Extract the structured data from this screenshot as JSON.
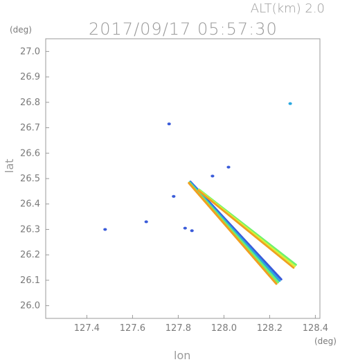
{
  "header": {
    "altitude_label": "ALT(km) 2.0",
    "timestamp": "2017/09/17 05:57:30"
  },
  "colors": {
    "axis": "#999999",
    "rain_weak": "#3a5bd9",
    "rain_light": "#2aa8e0",
    "rain_moderate": "#6ef26e",
    "rain_strong": "#d8f03a",
    "rain_heavy": "#f0a020",
    "rain_intense": "#e03020"
  },
  "chart_data": {
    "type": "heatmap",
    "title": "2017/09/17 05:57:30",
    "subtitle": "ALT(km) 2.0",
    "xlabel": "lon",
    "ylabel": "lat",
    "x_unit": "(deg)",
    "y_unit": "(deg)",
    "xlim": [
      127.22,
      128.42
    ],
    "ylim": [
      25.95,
      27.05
    ],
    "x_ticks": [
      127.4,
      127.6,
      127.8,
      128.0,
      128.2,
      128.4
    ],
    "x_tick_labels": [
      "127.4",
      "127.6",
      "127.8",
      "128.0",
      "128.2",
      "128.4"
    ],
    "y_ticks": [
      26.0,
      26.1,
      26.2,
      26.3,
      26.4,
      26.5,
      26.6,
      26.7,
      26.8,
      26.9,
      27.0
    ],
    "y_tick_labels": [
      "26.0",
      "26.1",
      "26.2",
      "26.3",
      "26.4",
      "26.5",
      "26.6",
      "26.7",
      "26.8",
      "26.9",
      "27.0"
    ],
    "grid": false,
    "echo_bands": [
      {
        "from": [
          127.85,
          26.485
        ],
        "to": [
          128.24,
          26.095
        ],
        "colors": [
          "blue",
          "cyan",
          "green",
          "orange"
        ]
      },
      {
        "from": [
          127.89,
          26.455
        ],
        "to": [
          128.31,
          26.155
        ],
        "colors": [
          "green",
          "yellow",
          "orange"
        ]
      }
    ],
    "echo_spots": [
      {
        "lon": 127.48,
        "lat": 26.3,
        "color": "blue"
      },
      {
        "lon": 127.78,
        "lat": 26.43,
        "color": "blue"
      },
      {
        "lon": 127.83,
        "lat": 26.305,
        "color": "blue"
      },
      {
        "lon": 127.86,
        "lat": 26.295,
        "color": "blue"
      },
      {
        "lon": 127.95,
        "lat": 26.51,
        "color": "blue"
      },
      {
        "lon": 128.02,
        "lat": 26.545,
        "color": "blue"
      },
      {
        "lon": 128.29,
        "lat": 26.795,
        "color": "cyan"
      },
      {
        "lon": 127.76,
        "lat": 26.715,
        "color": "blue"
      },
      {
        "lon": 127.66,
        "lat": 26.33,
        "color": "blue"
      }
    ]
  }
}
